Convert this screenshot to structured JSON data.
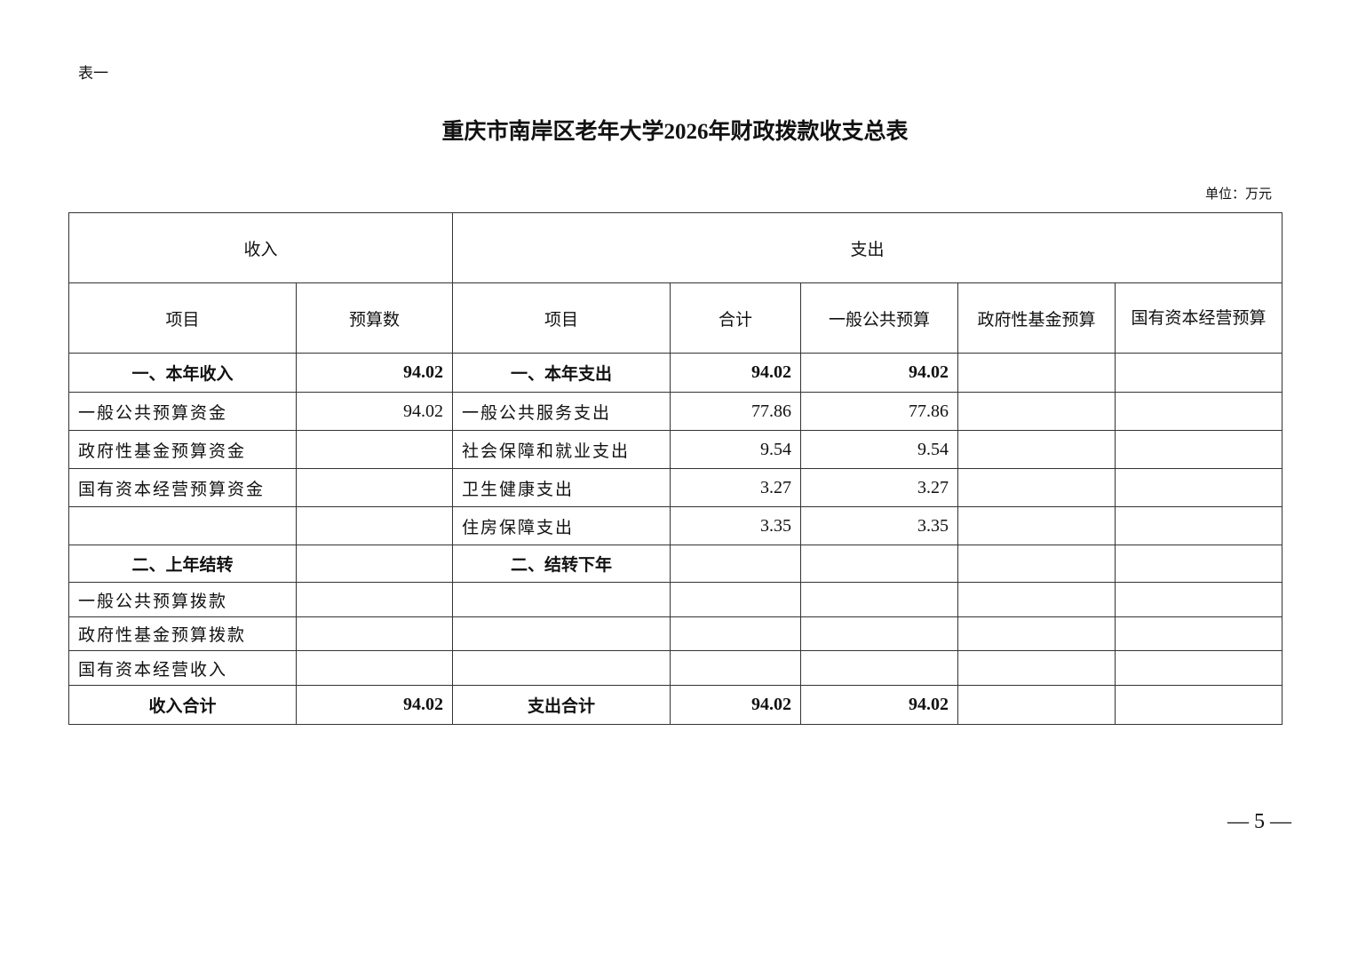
{
  "label": "表一",
  "title": "重庆市南岸区老年大学2026年财政拨款收支总表",
  "unit": "单位：万元",
  "header": {
    "income": "收入",
    "expense": "支出"
  },
  "columns": [
    "项目",
    "预算数",
    "项目",
    "合计",
    "一般公共预算",
    "政府性基金预算",
    "国有资本经营预算"
  ],
  "rows": [
    {
      "cells": [
        "一、本年收入",
        "94.02",
        "一、本年支出",
        "94.02",
        "94.02",
        "",
        ""
      ],
      "bold": true
    },
    {
      "cells": [
        "一般公共预算资金",
        "94.02",
        "一般公共服务支出",
        "77.86",
        "77.86",
        "",
        ""
      ]
    },
    {
      "cells": [
        "政府性基金预算资金",
        "",
        "社会保障和就业支出",
        "9.54",
        "9.54",
        "",
        ""
      ]
    },
    {
      "cells": [
        "国有资本经营预算资金",
        "",
        "卫生健康支出",
        "3.27",
        "3.27",
        "",
        ""
      ]
    },
    {
      "cells": [
        "",
        "",
        "住房保障支出",
        "3.35",
        "3.35",
        "",
        ""
      ]
    },
    {
      "cells": [
        "二、上年结转",
        "",
        "二、结转下年",
        "",
        "",
        "",
        ""
      ],
      "bold": true
    },
    {
      "cells": [
        "一般公共预算拨款",
        "",
        "",
        "",
        "",
        "",
        ""
      ]
    },
    {
      "cells": [
        "政府性基金预算拨款",
        "",
        "",
        "",
        "",
        "",
        ""
      ]
    },
    {
      "cells": [
        "国有资本经营收入",
        "",
        "",
        "",
        "",
        "",
        ""
      ]
    },
    {
      "cells": [
        "收入合计",
        "94.02",
        "支出合计",
        "94.02",
        "94.02",
        "",
        ""
      ],
      "bold": true,
      "total": true
    }
  ],
  "page_number": "— 5 —"
}
